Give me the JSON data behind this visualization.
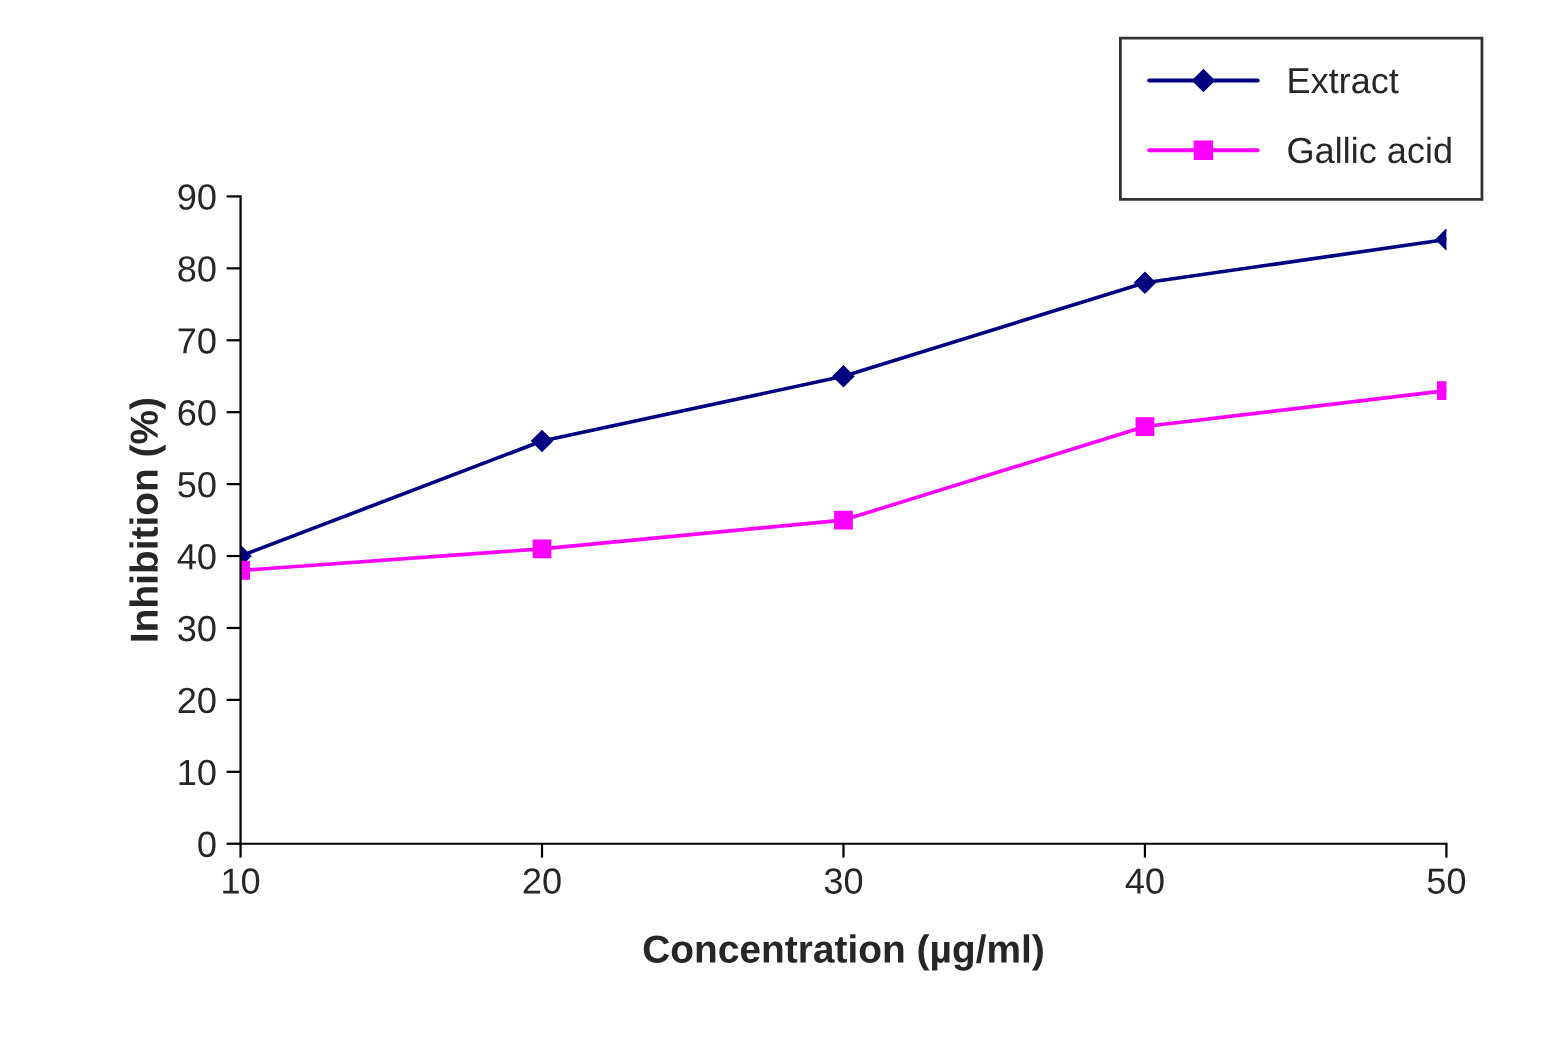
{
  "chart_data": {
    "type": "line",
    "xlabel": "Concentration (µg/ml)",
    "ylabel": "Inhibition (%)",
    "x": [
      10,
      20,
      30,
      40,
      50
    ],
    "series": [
      {
        "name": "Extract",
        "color": "#000080",
        "marker": "diamond",
        "values": [
          40,
          56,
          65,
          78,
          84
        ]
      },
      {
        "name": "Gallic acid",
        "color": "#ff00ff",
        "marker": "square",
        "values": [
          38,
          41,
          45,
          58,
          63
        ]
      }
    ],
    "xlim": [
      10,
      50
    ],
    "xticks": [
      10,
      20,
      30,
      40,
      50
    ],
    "ylim": [
      0,
      90
    ],
    "yticks": [
      0,
      10,
      20,
      30,
      40,
      50,
      60,
      70,
      80,
      90
    ],
    "grid": false,
    "legend": "top right",
    "line_style": "solid"
  }
}
